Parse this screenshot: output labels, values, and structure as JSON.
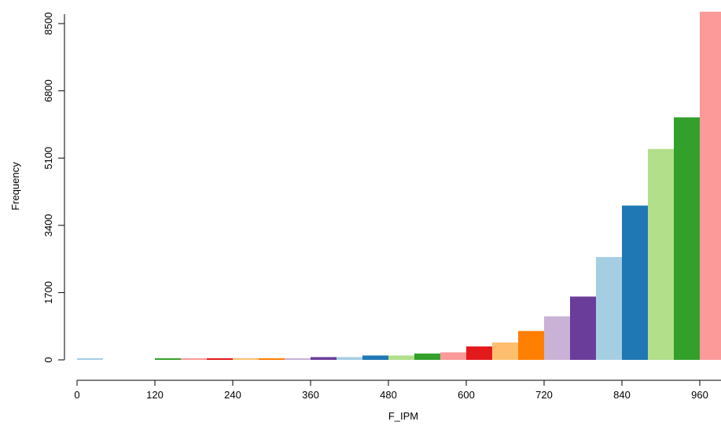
{
  "chart_data": {
    "type": "bar",
    "title": "",
    "xlabel": "F_IPM",
    "ylabel": "Frequency",
    "xlim": [
      0,
      990
    ],
    "ylim": [
      0,
      8500
    ],
    "bin_width": 40,
    "x_ticks": [
      0,
      120,
      240,
      360,
      480,
      600,
      720,
      840,
      960
    ],
    "x_tick_labels": [
      "0",
      "120",
      "240",
      "360",
      "480",
      "600",
      "720",
      "840",
      "960"
    ],
    "y_ticks": [
      0,
      1700,
      3400,
      5100,
      6800,
      8500
    ],
    "y_tick_labels": [
      "0",
      "1700",
      "3400",
      "5100",
      "6800",
      "8500"
    ],
    "grid": false,
    "bins": [
      {
        "x0": 0,
        "x1": 40,
        "value": 30,
        "color": "#a6cee3"
      },
      {
        "x0": 40,
        "x1": 80,
        "value": 0,
        "color": "#1f78b4"
      },
      {
        "x0": 80,
        "x1": 120,
        "value": 0,
        "color": "#b2df8a"
      },
      {
        "x0": 120,
        "x1": 160,
        "value": 30,
        "color": "#33a02c"
      },
      {
        "x0": 160,
        "x1": 200,
        "value": 30,
        "color": "#fb9a99"
      },
      {
        "x0": 200,
        "x1": 240,
        "value": 30,
        "color": "#e31a1c"
      },
      {
        "x0": 240,
        "x1": 280,
        "value": 30,
        "color": "#fdbf6f"
      },
      {
        "x0": 280,
        "x1": 320,
        "value": 40,
        "color": "#ff7f00"
      },
      {
        "x0": 320,
        "x1": 360,
        "value": 40,
        "color": "#cab2d6"
      },
      {
        "x0": 360,
        "x1": 400,
        "value": 70,
        "color": "#6a3d9a"
      },
      {
        "x0": 400,
        "x1": 440,
        "value": 70,
        "color": "#a6cee3"
      },
      {
        "x0": 440,
        "x1": 480,
        "value": 110,
        "color": "#1f78b4"
      },
      {
        "x0": 480,
        "x1": 520,
        "value": 110,
        "color": "#b2df8a"
      },
      {
        "x0": 520,
        "x1": 560,
        "value": 160,
        "color": "#33a02c"
      },
      {
        "x0": 560,
        "x1": 600,
        "value": 190,
        "color": "#fb9a99"
      },
      {
        "x0": 600,
        "x1": 640,
        "value": 340,
        "color": "#e31a1c"
      },
      {
        "x0": 640,
        "x1": 680,
        "value": 440,
        "color": "#fdbf6f"
      },
      {
        "x0": 680,
        "x1": 720,
        "value": 730,
        "color": "#ff7f00"
      },
      {
        "x0": 720,
        "x1": 760,
        "value": 1100,
        "color": "#cab2d6"
      },
      {
        "x0": 760,
        "x1": 800,
        "value": 1600,
        "color": "#6a3d9a"
      },
      {
        "x0": 800,
        "x1": 840,
        "value": 2600,
        "color": "#a6cee3"
      },
      {
        "x0": 840,
        "x1": 880,
        "value": 3900,
        "color": "#1f78b4"
      },
      {
        "x0": 880,
        "x1": 920,
        "value": 5330,
        "color": "#b2df8a"
      },
      {
        "x0": 920,
        "x1": 960,
        "value": 6130,
        "color": "#33a02c"
      },
      {
        "x0": 960,
        "x1": 1000,
        "value": 8800,
        "color": "#fb9a99"
      }
    ]
  }
}
